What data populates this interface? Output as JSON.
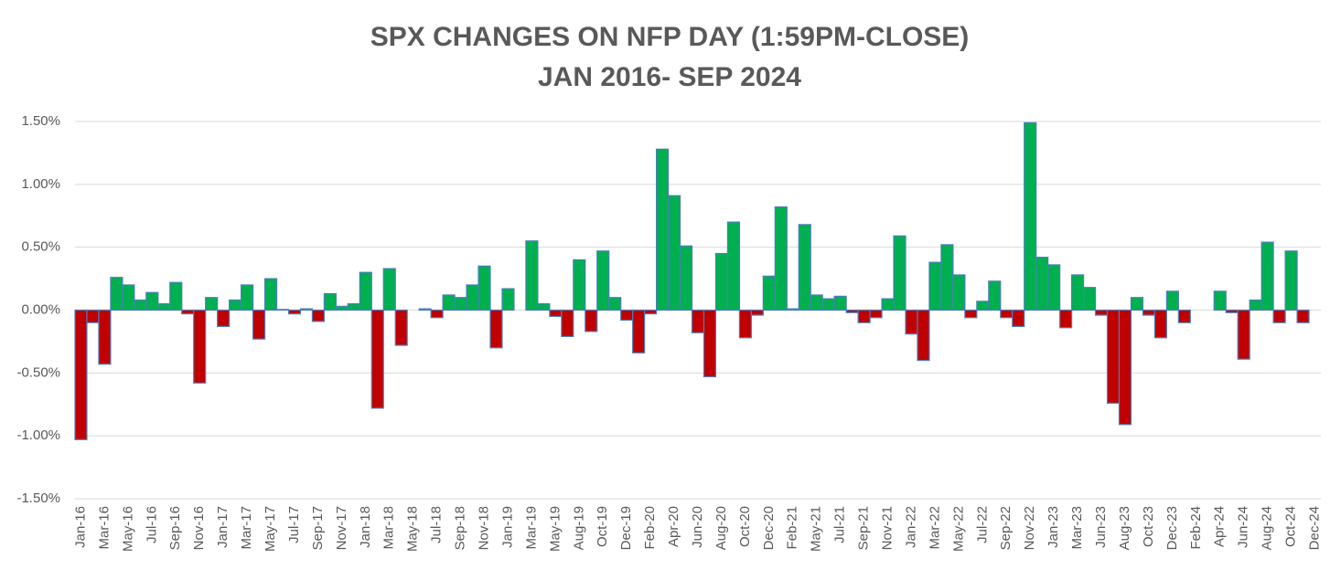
{
  "chart_data": {
    "type": "bar",
    "title": "SPX CHANGES ON NFP DAY (1:59PM-CLOSE)",
    "subtitle": "JAN 2016- SEP 2024",
    "categories": [
      "Jan-16",
      null,
      "Mar-16",
      null,
      "May-16",
      null,
      "Jul-16",
      null,
      "Sep-16",
      null,
      "Nov-16",
      null,
      "Jan-17",
      null,
      "Mar-17",
      null,
      "May-17",
      null,
      "Jul-17",
      null,
      "Sep-17",
      null,
      "Nov-17",
      null,
      "Jan-18",
      null,
      "Mar-18",
      null,
      "May-18",
      null,
      "Jul-18",
      null,
      "Sep-18",
      null,
      "Nov-18",
      null,
      "Jan-19",
      null,
      "Mar-19",
      null,
      "May-19",
      null,
      "Aug-19",
      null,
      "Oct-19",
      null,
      "Dec-19",
      null,
      "Feb-20",
      null,
      "Apr-20",
      null,
      "Jun-20",
      null,
      "Aug-20",
      null,
      "Oct-20",
      null,
      "Dec-20",
      null,
      "Feb-21",
      null,
      "May-21",
      null,
      "Jul-21",
      null,
      "Sep-21",
      null,
      "Nov-21",
      null,
      "Jan-22",
      null,
      "Mar-22",
      null,
      "May-22",
      null,
      "Jul-22",
      null,
      "Sep-22",
      null,
      "Nov-22",
      null,
      "Jan-23",
      null,
      "Mar-23",
      null,
      "Jun-23",
      null,
      "Aug-23",
      null,
      "Oct-23",
      null,
      "Dec-23",
      null,
      "Feb-24",
      null,
      "Apr-24",
      null,
      "Jun-24",
      null,
      "Aug-24",
      null,
      "Oct-24",
      null,
      "Dec-24"
    ],
    "values": [
      -1.03,
      -0.1,
      -0.43,
      0.26,
      0.2,
      0.08,
      0.14,
      0.05,
      0.22,
      -0.03,
      -0.58,
      0.1,
      -0.13,
      0.08,
      0.2,
      -0.23,
      0.25,
      0.005,
      -0.03,
      0.01,
      -0.09,
      0.13,
      0.03,
      0.05,
      0.3,
      -0.78,
      0.33,
      -0.28,
      0.0,
      0.01,
      -0.06,
      0.12,
      0.1,
      0.2,
      0.35,
      -0.3,
      0.17,
      0.0,
      0.55,
      0.05,
      -0.05,
      -0.21,
      0.4,
      -0.17,
      0.47,
      0.1,
      -0.08,
      -0.34,
      -0.03,
      1.28,
      0.91,
      0.51,
      -0.18,
      -0.53,
      0.45,
      0.7,
      -0.22,
      -0.04,
      0.27,
      0.82,
      0.01,
      0.68,
      0.12,
      0.09,
      0.11,
      -0.02,
      -0.1,
      -0.06,
      0.09,
      0.59,
      -0.19,
      -0.4,
      0.38,
      0.52,
      0.28,
      -0.06,
      0.07,
      0.23,
      -0.06,
      -0.13,
      1.49,
      0.42,
      0.36,
      -0.14,
      0.28,
      0.18,
      -0.04,
      -0.74,
      -0.91,
      0.1,
      -0.04,
      -0.22,
      0.15,
      -0.1,
      0.0,
      0.0,
      0.15,
      -0.02,
      -0.39,
      0.08,
      0.54,
      -0.1,
      0.47,
      -0.1,
      0.0
    ],
    "positive_color": "#00b050",
    "negative_color": "#c00000",
    "border_color": "#4a7ebb",
    "ylim": [
      -1.5,
      1.5
    ],
    "yticks": [
      {
        "value": -1.5,
        "label": "-1.50%"
      },
      {
        "value": -1.0,
        "label": "-1.00%"
      },
      {
        "value": -0.5,
        "label": "-0.50%"
      },
      {
        "value": 0,
        "label": "0.00%"
      },
      {
        "value": 0.5,
        "label": "0.50%"
      },
      {
        "value": 1.0,
        "label": "1.00%"
      },
      {
        "value": 1.5,
        "label": "1.50%"
      }
    ],
    "grid": true
  }
}
